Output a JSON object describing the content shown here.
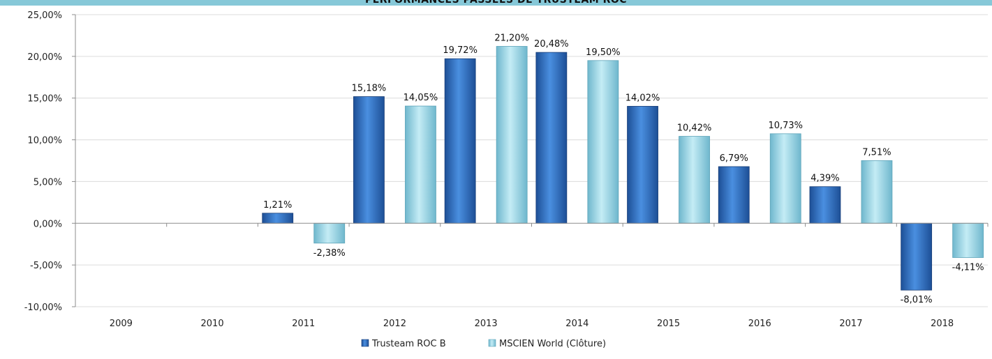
{
  "chart_data": {
    "type": "bar",
    "title": "PERFORMANCES PASSÉES DE TRUSTEAM ROC",
    "categories": [
      "2009",
      "2010",
      "2011",
      "2012",
      "2013",
      "2014",
      "2015",
      "2016",
      "2017",
      "2018"
    ],
    "series": [
      {
        "name": "Trusteam ROC B",
        "color": "#2f6fc4",
        "values": [
          null,
          null,
          1.21,
          15.18,
          19.72,
          20.48,
          14.02,
          6.79,
          4.39,
          -8.01
        ],
        "labels": [
          null,
          null,
          "1,21%",
          "15,18%",
          "19,72%",
          "20,48%",
          "14,02%",
          "6,79%",
          "4,39%",
          "-8,01%"
        ]
      },
      {
        "name": "MSCIEN World (Clôture)",
        "color": "#9fd5e4",
        "values": [
          null,
          null,
          -2.38,
          14.05,
          21.2,
          19.5,
          10.42,
          10.73,
          7.51,
          -4.11
        ],
        "labels": [
          null,
          null,
          "-2,38%",
          "14,05%",
          "21,20%",
          "19,50%",
          "10,42%",
          "10,73%",
          "7,51%",
          "-4,11%"
        ]
      }
    ],
    "ylim": [
      -10,
      25
    ],
    "ytick_values": [
      25,
      20,
      15,
      10,
      5,
      0,
      -5,
      -10
    ],
    "ytick_labels": [
      "25,00%",
      "20,00%",
      "15,00%",
      "10,00%",
      "5,00%",
      "0,00%",
      "-5,00%",
      "-10,00%"
    ],
    "grid": true,
    "legend_position": "bottom",
    "xlabel": "",
    "ylabel": ""
  }
}
